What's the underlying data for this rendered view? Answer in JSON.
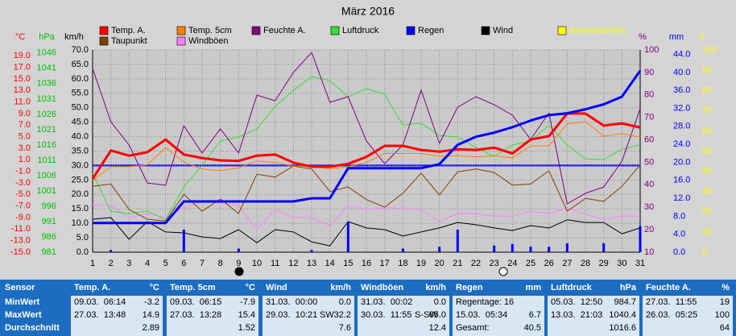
{
  "chart_data": {
    "type": "line",
    "title": "März 2016",
    "x": [
      1,
      2,
      3,
      4,
      5,
      6,
      7,
      8,
      9,
      10,
      11,
      12,
      13,
      14,
      15,
      16,
      17,
      18,
      19,
      20,
      21,
      22,
      23,
      24,
      25,
      26,
      27,
      28,
      29,
      30,
      31
    ],
    "xlim": [
      1,
      31
    ],
    "xticks": [
      1,
      2,
      3,
      4,
      5,
      6,
      7,
      8,
      9,
      10,
      11,
      12,
      13,
      14,
      15,
      16,
      17,
      18,
      19,
      20,
      21,
      22,
      23,
      24,
      25,
      26,
      27,
      28,
      29,
      30,
      31
    ],
    "grid": true,
    "axes": [
      {
        "label": "°C",
        "color": "#ff0000",
        "ylim": [
          -15,
          20
        ],
        "yticks": [
          {
            "value": 19,
            "label": "19.0"
          },
          {
            "value": 17,
            "label": "17.0"
          },
          {
            "value": 15,
            "label": "15.0"
          },
          {
            "value": 13,
            "label": "13.0"
          },
          {
            "value": 11,
            "label": "11.0"
          },
          {
            "value": 9,
            "label": "9.0"
          },
          {
            "value": 7,
            "label": "7.0"
          },
          {
            "value": 5,
            "label": "5.0"
          },
          {
            "value": 3,
            "label": "3.0"
          },
          {
            "value": 1,
            "label": "1.0"
          },
          {
            "value": -1,
            "label": "-1.0"
          },
          {
            "value": -3,
            "label": "-3.0"
          },
          {
            "value": -5,
            "label": "-5.0"
          },
          {
            "value": -7,
            "label": "-7.0"
          },
          {
            "value": -9,
            "label": "-9.0"
          },
          {
            "value": -11,
            "label": "-11.0"
          },
          {
            "value": -13,
            "label": "-13.0"
          },
          {
            "value": -15,
            "label": "-15.0"
          }
        ],
        "reference_line": 0,
        "reference_color": "#0000ff"
      },
      {
        "label": "hPa",
        "color": "#00c000",
        "ylim": [
          981,
          1047
        ],
        "yticks": [
          1046,
          1041,
          1036,
          1031,
          1026,
          1021,
          1016,
          1011,
          1006,
          1001,
          996,
          991,
          986,
          981
        ]
      },
      {
        "label": "km/h",
        "color": "#000000",
        "ylim": [
          0,
          70
        ],
        "yticks": [
          {
            "value": 70,
            "label": "70.0"
          },
          {
            "value": 65,
            "label": "65.0"
          },
          {
            "value": 60,
            "label": "60.0"
          },
          {
            "value": 55,
            "label": "55.0"
          },
          {
            "value": 50,
            "label": "50.0"
          },
          {
            "value": 45,
            "label": "45.0"
          },
          {
            "value": 40,
            "label": "40.0"
          },
          {
            "value": 35,
            "label": "35.0"
          },
          {
            "value": 30,
            "label": "30.0"
          },
          {
            "value": 25,
            "label": "25.0"
          },
          {
            "value": 20,
            "label": "20.0"
          },
          {
            "value": 15,
            "label": "15.0"
          },
          {
            "value": 10,
            "label": "10.0"
          },
          {
            "value": 5,
            "label": "5.0"
          },
          {
            "value": 0,
            "label": "0.0"
          }
        ],
        "grid": true
      },
      {
        "label": "%",
        "color": "#800080",
        "ylim": [
          10,
          100
        ],
        "yticks": [
          100,
          90,
          80,
          70,
          60,
          50,
          40,
          30,
          20,
          10
        ]
      },
      {
        "label": "mm",
        "color": "#0000ff",
        "ylim": [
          0,
          45
        ],
        "yticks": [
          {
            "value": 44,
            "label": "44.0"
          },
          {
            "value": 40,
            "label": "40.0"
          },
          {
            "value": 36,
            "label": "36.0"
          },
          {
            "value": 32,
            "label": "32.0"
          },
          {
            "value": 28,
            "label": "28.0"
          },
          {
            "value": 24,
            "label": "24.0"
          },
          {
            "value": 20,
            "label": "20.0"
          },
          {
            "value": 16,
            "label": "16.0"
          },
          {
            "value": 12,
            "label": "12.0"
          },
          {
            "value": 8,
            "label": "8.0"
          },
          {
            "value": 4,
            "label": "4.0"
          },
          {
            "value": 0,
            "label": "0.0"
          }
        ]
      },
      {
        "label": "h",
        "color": "#ffff00",
        "ylim": [
          0,
          100
        ],
        "yticks": [
          100,
          90,
          80,
          70,
          60,
          50,
          40,
          30,
          20,
          10,
          0
        ]
      }
    ],
    "series": [
      {
        "name": "Temp. A.",
        "color": "#ff0000",
        "axis": 0,
        "width": 3,
        "values": [
          -2.3,
          2.6,
          1.7,
          2.3,
          4.5,
          1.9,
          1.3,
          0.9,
          0.8,
          1.7,
          1.9,
          0.5,
          -0.2,
          -0.2,
          0.3,
          1.5,
          3.4,
          3.4,
          2.7,
          2.4,
          2.8,
          2.7,
          3.1,
          2.1,
          4.5,
          5.1,
          9.0,
          9.0,
          6.9,
          7.3,
          6.6
        ]
      },
      {
        "name": "Temp. 5cm",
        "color": "#ff8000",
        "axis": 0,
        "width": 1,
        "values": [
          -2.6,
          -0.2,
          -0.2,
          0.1,
          3.1,
          0.6,
          -0.6,
          -0.9,
          -0.4,
          0.8,
          0.5,
          -0.1,
          -0.1,
          -0.6,
          -0.2,
          0.5,
          2.1,
          2.1,
          2.1,
          1.6,
          1.7,
          1.5,
          1.7,
          1.3,
          3.4,
          3.4,
          7.2,
          7.6,
          5.1,
          5.5,
          4.9
        ]
      },
      {
        "name": "Feuchte A.",
        "color": "#800080",
        "axis": 3,
        "width": 1,
        "values": [
          91.8,
          68,
          57.7,
          40.8,
          39.8,
          66.3,
          54.1,
          64.9,
          54.1,
          79.9,
          77.4,
          90,
          98.9,
          76.7,
          79.2,
          59.5,
          49.4,
          57.7,
          82.1,
          58.4,
          74.5,
          79.2,
          75.6,
          71,
          60.2,
          72,
          31.5,
          36.2,
          39,
          50.5,
          73.8
        ]
      },
      {
        "name": "Luftdruck",
        "color": "#33e033",
        "axis": 1,
        "width": 1,
        "values": [
          1006.7,
          994.4,
          993.6,
          994.4,
          991.7,
          1002.3,
          1009.4,
          1017.3,
          1018.6,
          1021.2,
          1028.6,
          1033.8,
          1038.3,
          1037,
          1031.7,
          1034.4,
          1032.5,
          1022.5,
          1023.1,
          1019.1,
          1018.6,
          1015.2,
          1012.3,
          1016,
          1017.3,
          1022.5,
          1016,
          1011.5,
          1011.2,
          1014.6,
          1016
        ]
      },
      {
        "name": "Regen",
        "color": "#0000ff",
        "axis": 4,
        "width": 3,
        "values": [
          6.5,
          6.5,
          6.5,
          6.5,
          6.5,
          11.3,
          11.3,
          11.3,
          11.3,
          11.3,
          11.3,
          11.3,
          12,
          12,
          18.7,
          18.7,
          18.7,
          18.7,
          18.7,
          19.6,
          23.9,
          25.7,
          26.6,
          27.8,
          29.3,
          30.5,
          30.9,
          31.8,
          32.9,
          34.6,
          40.4
        ],
        "bar_values": [
          0,
          0.5,
          0,
          0,
          0,
          5,
          0,
          0,
          0.8,
          0,
          0,
          0,
          0.5,
          0,
          6.8,
          0,
          0,
          0.8,
          0,
          1.2,
          5,
          0,
          1.5,
          1.8,
          1.2,
          1.2,
          2,
          0,
          2,
          0,
          5.8
        ]
      },
      {
        "name": "Wind",
        "color": "#000000",
        "axis": 2,
        "width": 1,
        "values": [
          11.4,
          12,
          4.5,
          10.6,
          7,
          6.7,
          5.3,
          4.7,
          7.8,
          3.3,
          7.8,
          7,
          3.6,
          2.2,
          10.6,
          8.4,
          7.8,
          5.6,
          7,
          8.4,
          10.3,
          9.5,
          8.4,
          7.5,
          9.2,
          8.4,
          11.2,
          10.3,
          10.3,
          6.4,
          8.4
        ]
      },
      {
        "name": "Sonnenschein",
        "color": "#ffff00",
        "axis": 5,
        "label_color": "#ffff00"
      },
      {
        "name": "Taupunkt",
        "color": "#804000",
        "axis": 0,
        "width": 1,
        "values": [
          -3.6,
          -3.2,
          -7.6,
          -9.3,
          -9.6,
          -5.0,
          -7.9,
          -5.8,
          -8.3,
          -1.5,
          -2.0,
          -0.1,
          -0.6,
          -4.5,
          -3.7,
          -5.9,
          -7.2,
          -4.8,
          -1.3,
          -5.1,
          -1.1,
          -0.6,
          -1.2,
          -3.4,
          -3.2,
          -0.9,
          -7.9,
          -5.7,
          -6.2,
          -3.6,
          0.1
        ]
      },
      {
        "name": "Windböen",
        "color": "#ff80ff",
        "axis": 2,
        "width": 1,
        "values": [
          16.2,
          16.2,
          12,
          13.4,
          12,
          15.3,
          17.6,
          17,
          16.2,
          7.8,
          14.8,
          12,
          12,
          9.2,
          16.2,
          14.8,
          15.3,
          15.3,
          14.8,
          10.6,
          13.4,
          13.4,
          12.5,
          12.5,
          14.2,
          13.4,
          15.3,
          13.1,
          11.4,
          12.5,
          12.5
        ]
      }
    ]
  },
  "table": {
    "corner": "Sensor",
    "columns": [
      {
        "title": "Temp. A.",
        "unit": "°C"
      },
      {
        "title": "Temp. 5cm",
        "unit": "°C"
      },
      {
        "title": "Wind",
        "unit": "km/h"
      },
      {
        "title": "Windböen",
        "unit": "km/h"
      },
      {
        "title": "Regen",
        "unit": "mm"
      },
      {
        "title": "Luftdruck",
        "unit": "hPa"
      },
      {
        "title": "Feuchte A.",
        "unit": "%"
      }
    ],
    "rows": [
      {
        "label": "MinWert",
        "cells": [
          {
            "left": "09.03.  06:14",
            "right": "-3.2"
          },
          {
            "left": "09.03.  06:15",
            "right": "-7.9"
          },
          {
            "left": "31.03.  00:00",
            "right": "0.0"
          },
          {
            "left": "31.03.  00:02",
            "right": "0.0"
          },
          {
            "left": "Regentage: 16"
          },
          {
            "left": "05.03.  12:50",
            "right": "984.7"
          },
          {
            "left": "27.03.  11:55",
            "right": "19"
          }
        ]
      },
      {
        "label": "MaxWert",
        "cells": [
          {
            "left": "27.03.  13:48",
            "right": "14.9"
          },
          {
            "left": "27.03.  13:28",
            "right": "15.4"
          },
          {
            "left": "29.03.  10:21",
            "mid": "SW",
            "right": "32.2"
          },
          {
            "left": "30.03.  11:55",
            "mid": "S-SW",
            "right": "65.0"
          },
          {
            "left": "15.03.  05:34",
            "right": "6.7"
          },
          {
            "left": "13.03.  21:03",
            "right": "1040.4"
          },
          {
            "left": "26.03.  05:25",
            "right": "100"
          }
        ]
      },
      {
        "label": "Durchschnitt",
        "cells": [
          {
            "right": "2.89"
          },
          {
            "right": "1.52"
          },
          {
            "right": "7.6"
          },
          {
            "right": "12.4"
          },
          {
            "left": "Gesamt:",
            "right": "40.5"
          },
          {
            "right": "1016.6"
          },
          {
            "right": "64"
          }
        ]
      }
    ]
  }
}
